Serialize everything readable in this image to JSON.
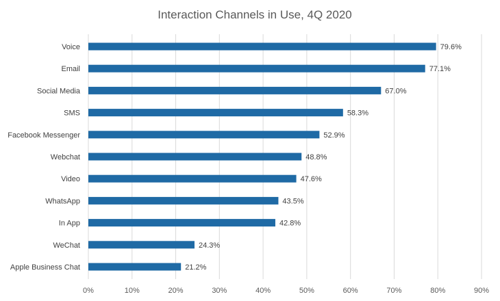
{
  "chart_data": {
    "type": "bar",
    "orientation": "horizontal",
    "title": "Interaction Channels in Use, 4Q 2020",
    "xlabel": "",
    "ylabel": "",
    "categories": [
      "Voice",
      "Email",
      "Social Media",
      "SMS",
      "Facebook Messenger",
      "Webchat",
      "Video",
      "WhatsApp",
      "In App",
      "WeChat",
      "Apple Business Chat"
    ],
    "values": [
      79.6,
      77.1,
      67.0,
      58.3,
      52.9,
      48.8,
      47.6,
      43.5,
      42.8,
      24.3,
      21.2
    ],
    "value_labels": [
      "79.6%",
      "77.1%",
      "67.0%",
      "58.3%",
      "52.9%",
      "48.8%",
      "47.6%",
      "43.5%",
      "42.8%",
      "24.3%",
      "21.2%"
    ],
    "xlim": [
      0,
      90
    ],
    "x_ticks": [
      0,
      10,
      20,
      30,
      40,
      50,
      60,
      70,
      80,
      90
    ],
    "x_tick_labels": [
      "0%",
      "10%",
      "20%",
      "30%",
      "40%",
      "50%",
      "60%",
      "70%",
      "80%",
      "90%"
    ],
    "grid": true,
    "legend": "none",
    "bar_color": "#1f6aa5"
  }
}
